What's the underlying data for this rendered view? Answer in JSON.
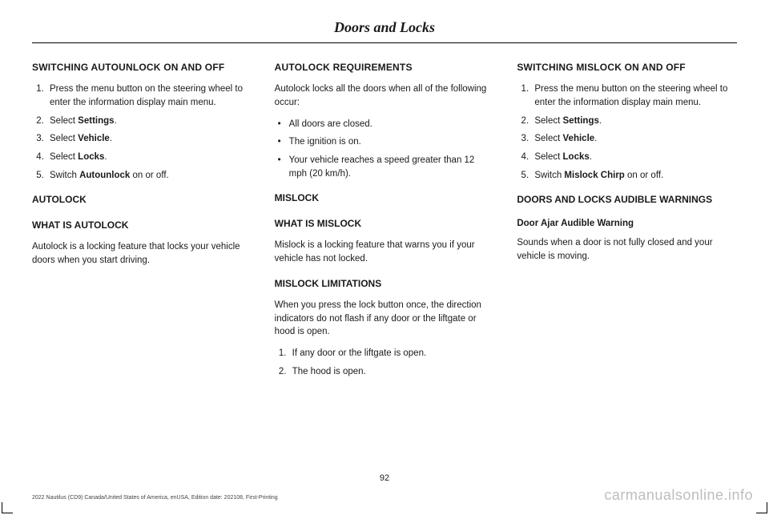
{
  "header": {
    "title": "Doors and Locks"
  },
  "page_number": "92",
  "footer_line": "2022 Nautilus (CD9) Canada/United States of America, enUSA, Edition date: 202108, First-Printing",
  "watermark": "carmanualsonline.info",
  "col1": {
    "h1": "SWITCHING AUTOUNLOCK ON AND OFF",
    "steps": [
      {
        "pre": "Press the menu button on the steering wheel to enter the information display main menu."
      },
      {
        "pre": "Select ",
        "bold": "Settings",
        "post": "."
      },
      {
        "pre": "Select ",
        "bold": "Vehicle",
        "post": "."
      },
      {
        "pre": "Select ",
        "bold": "Locks",
        "post": "."
      },
      {
        "pre": "Switch ",
        "bold": "Autounlock",
        "post": " on or off."
      }
    ],
    "h2a": "AUTOLOCK",
    "h2b": "WHAT IS AUTOLOCK",
    "p1": "Autolock is a locking feature that locks your vehicle doors when you start driving."
  },
  "col2": {
    "h1": "AUTOLOCK REQUIREMENTS",
    "p1": "Autolock locks all the doors when all of the following occur:",
    "bullets": [
      "All doors are closed.",
      "The ignition is on.",
      "Your vehicle reaches a speed greater than 12 mph (20 km/h)."
    ],
    "h2a": "MISLOCK",
    "h2b": "WHAT IS MISLOCK",
    "p2": "Mislock is a locking feature that warns you if your vehicle has not locked.",
    "h2c": "MISLOCK LIMITATIONS",
    "p3": "When you press the lock button once, the direction indicators do not flash if any door or the liftgate or hood is open.",
    "steps": [
      "If any door or the liftgate is open.",
      "The hood is open."
    ]
  },
  "col3": {
    "h1": "SWITCHING MISLOCK ON AND OFF",
    "steps": [
      {
        "pre": "Press the menu button on the steering wheel to enter the information display main menu."
      },
      {
        "pre": "Select ",
        "bold": "Settings",
        "post": "."
      },
      {
        "pre": "Select ",
        "bold": "Vehicle",
        "post": "."
      },
      {
        "pre": "Select ",
        "bold": "Locks",
        "post": "."
      },
      {
        "pre": "Switch ",
        "bold": "Mislock Chirp",
        "post": " on or off."
      }
    ],
    "h2a": "DOORS AND LOCKS AUDIBLE WARNINGS",
    "h3a": "Door Ajar Audible Warning",
    "p1": "Sounds when a door is not fully closed and your vehicle is moving."
  }
}
